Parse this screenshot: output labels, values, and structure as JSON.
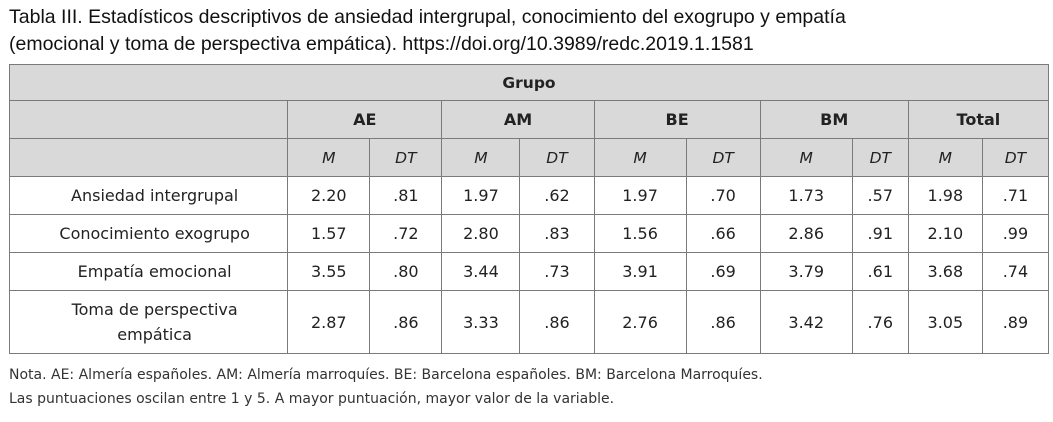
{
  "caption": {
    "line1": "Tabla III. Estadísticos descriptivos de ansiedad intergrupal, conocimiento del exogrupo y empatía",
    "line2": "(emocional y toma de perspectiva empática). https://doi.org/10.3989/redc.2019.1.1581"
  },
  "table": {
    "title": "Grupo",
    "groups": [
      "AE",
      "AM",
      "BE",
      "BM",
      "Total"
    ],
    "stat_m": "M",
    "stat_dt": "DT",
    "rows": [
      {
        "label": "Ansiedad intergrupal",
        "values": [
          "2.20",
          ".81",
          "1.97",
          ".62",
          "1.97",
          ".70",
          "1.73",
          ".57",
          "1.98",
          ".71"
        ]
      },
      {
        "label": "Conocimiento exogrupo",
        "values": [
          "1.57",
          ".72",
          "2.80",
          ".83",
          "1.56",
          ".66",
          "2.86",
          ".91",
          "2.10",
          ".99"
        ]
      },
      {
        "label": "Empatía emocional",
        "values": [
          "3.55",
          ".80",
          "3.44",
          ".73",
          "3.91",
          ".69",
          "3.79",
          ".61",
          "3.68",
          ".74"
        ]
      },
      {
        "label_line1": "Toma de perspectiva",
        "label_line2": "empática",
        "values": [
          "2.87",
          ".86",
          "3.33",
          ".86",
          "2.76",
          ".86",
          "3.42",
          ".76",
          "3.05",
          ".89"
        ]
      }
    ]
  },
  "notes": {
    "line1": "Nota. AE: Almería españoles. AM: Almería marroquíes. BE: Barcelona españoles. BM: Barcelona Marroquíes.",
    "line2": "Las puntuaciones oscilan entre 1 y 5. A mayor puntuación, mayor valor de la variable."
  }
}
